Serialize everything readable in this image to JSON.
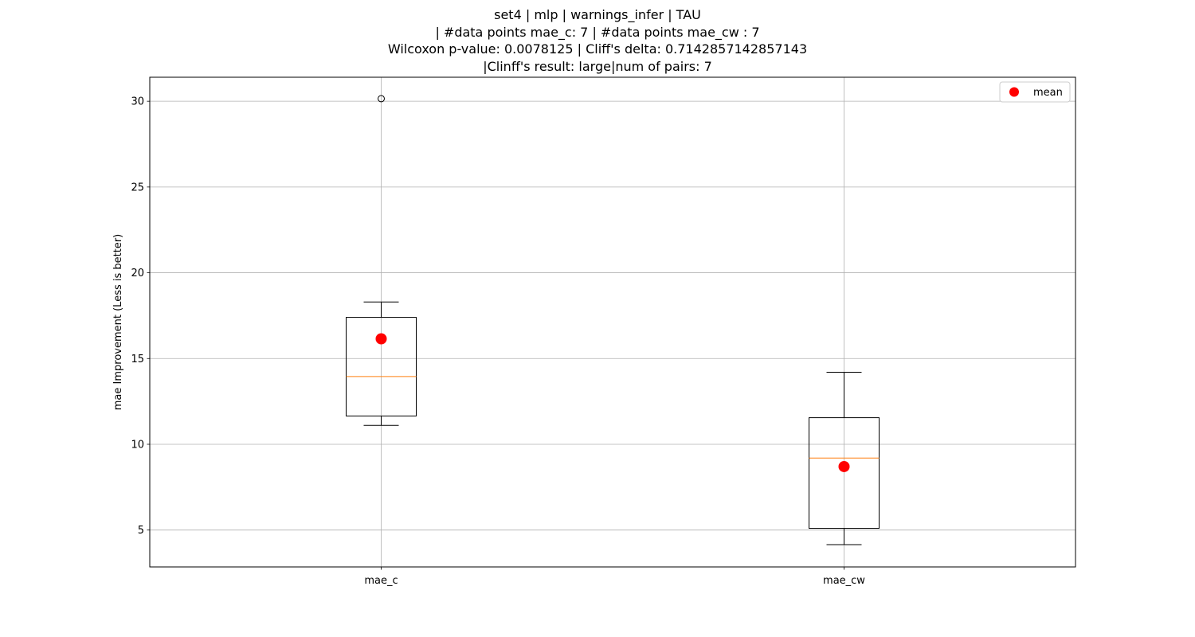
{
  "title_lines": [
    "set4 | mlp | warnings_infer | TAU",
    "| #data points mae_c: 7 | #data points mae_cw : 7",
    "Wilcoxon p-value: 0.0078125 | Cliff's delta: 0.7142857142857143",
    "|Clinff's result: large|num of pairs: 7"
  ],
  "chart_data": {
    "type": "box",
    "ylabel": "mae Improvement (Less is better)",
    "xlabel": "",
    "ylim": [
      2.85,
      31.4
    ],
    "yticks": [
      5,
      10,
      15,
      20,
      25,
      30
    ],
    "grid": true,
    "legend": {
      "position": "top-right",
      "entries": [
        {
          "label": "mean",
          "marker": "circle",
          "color": "#ff0000"
        }
      ]
    },
    "categories": [
      "mae_c",
      "mae_cw"
    ],
    "boxes": [
      {
        "label": "mae_c",
        "whisker_low": 11.1,
        "q1": 11.65,
        "median": 13.95,
        "q3": 17.4,
        "whisker_high": 18.3,
        "mean": 16.15,
        "outliers": [
          30.15
        ]
      },
      {
        "label": "mae_cw",
        "whisker_low": 4.15,
        "q1": 5.1,
        "median": 9.2,
        "q3": 11.55,
        "whisker_high": 14.2,
        "mean": 8.7,
        "outliers": []
      }
    ],
    "colors": {
      "box": "#000000",
      "median": "#ff7f0e",
      "mean": "#ff0000",
      "grid": "#b0b0b0"
    }
  }
}
